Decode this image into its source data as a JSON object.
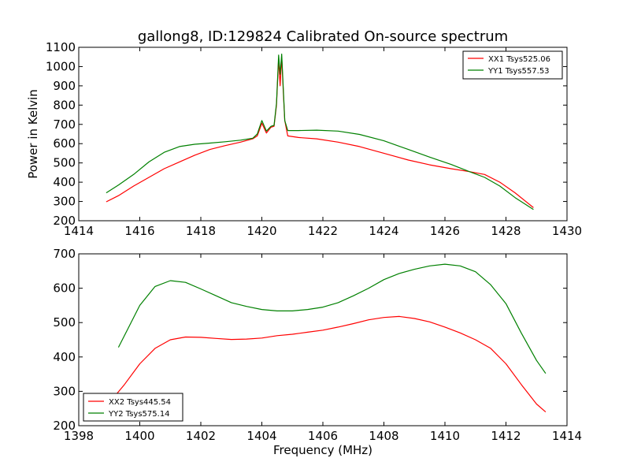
{
  "figure": {
    "title": "gallong8, ID:129824 Calibrated On-source spectrum"
  },
  "chart_data": [
    {
      "type": "line",
      "title": "gallong8, ID:129824 Calibrated On-source spectrum",
      "xlabel": "",
      "ylabel": "Power in Kelvin",
      "xlim": [
        1414,
        1430
      ],
      "ylim": [
        200,
        1100
      ],
      "xticks": [
        1414,
        1416,
        1418,
        1420,
        1422,
        1424,
        1426,
        1428,
        1430
      ],
      "yticks": [
        200,
        300,
        400,
        500,
        600,
        700,
        800,
        900,
        1000,
        1100
      ],
      "legend_position": "top-right",
      "series": [
        {
          "name": "XX1 Tsys525.06",
          "color": "#ff0000",
          "points": [
            [
              1414.9,
              298
            ],
            [
              1415.3,
              330
            ],
            [
              1415.8,
              380
            ],
            [
              1416.3,
              425
            ],
            [
              1416.8,
              470
            ],
            [
              1417.3,
              505
            ],
            [
              1417.8,
              540
            ],
            [
              1418.3,
              570
            ],
            [
              1418.8,
              590
            ],
            [
              1419.3,
              608
            ],
            [
              1419.7,
              625
            ],
            [
              1419.85,
              640
            ],
            [
              1420.0,
              706
            ],
            [
              1420.15,
              655
            ],
            [
              1420.3,
              685
            ],
            [
              1420.4,
              690
            ],
            [
              1420.48,
              800
            ],
            [
              1420.55,
              1040
            ],
            [
              1420.6,
              900
            ],
            [
              1420.65,
              1050
            ],
            [
              1420.7,
              880
            ],
            [
              1420.75,
              720
            ],
            [
              1420.85,
              640
            ],
            [
              1421.2,
              632
            ],
            [
              1421.8,
              625
            ],
            [
              1422.5,
              608
            ],
            [
              1423.2,
              585
            ],
            [
              1424.0,
              550
            ],
            [
              1424.8,
              515
            ],
            [
              1425.5,
              490
            ],
            [
              1426.2,
              470
            ],
            [
              1426.8,
              455
            ],
            [
              1427.3,
              440
            ],
            [
              1427.8,
              400
            ],
            [
              1428.3,
              345
            ],
            [
              1428.9,
              268
            ]
          ]
        },
        {
          "name": "YY1 Tsys557.53",
          "color": "#008000",
          "points": [
            [
              1414.9,
              345
            ],
            [
              1415.3,
              385
            ],
            [
              1415.8,
              440
            ],
            [
              1416.3,
              505
            ],
            [
              1416.8,
              555
            ],
            [
              1417.3,
              585
            ],
            [
              1417.8,
              597
            ],
            [
              1418.3,
              603
            ],
            [
              1418.8,
              610
            ],
            [
              1419.3,
              618
            ],
            [
              1419.7,
              628
            ],
            [
              1419.85,
              650
            ],
            [
              1420.0,
              720
            ],
            [
              1420.15,
              665
            ],
            [
              1420.3,
              690
            ],
            [
              1420.4,
              695
            ],
            [
              1420.48,
              810
            ],
            [
              1420.55,
              1060
            ],
            [
              1420.6,
              960
            ],
            [
              1420.65,
              1065
            ],
            [
              1420.7,
              900
            ],
            [
              1420.75,
              720
            ],
            [
              1420.85,
              668
            ],
            [
              1421.2,
              668
            ],
            [
              1421.8,
              670
            ],
            [
              1422.5,
              665
            ],
            [
              1423.2,
              648
            ],
            [
              1424.0,
              615
            ],
            [
              1424.8,
              570
            ],
            [
              1425.5,
              530
            ],
            [
              1426.2,
              492
            ],
            [
              1426.8,
              455
            ],
            [
              1427.3,
              425
            ],
            [
              1427.8,
              380
            ],
            [
              1428.3,
              320
            ],
            [
              1428.9,
              258
            ]
          ]
        }
      ]
    },
    {
      "type": "line",
      "title": "",
      "xlabel": "Frequency (MHz)",
      "ylabel": "",
      "xlim": [
        1398,
        1414
      ],
      "ylim": [
        200,
        700
      ],
      "xticks": [
        1398,
        1400,
        1402,
        1404,
        1406,
        1408,
        1410,
        1412,
        1414
      ],
      "yticks": [
        200,
        300,
        400,
        500,
        600,
        700
      ],
      "legend_position": "bottom-left",
      "series": [
        {
          "name": "XX2 Tsys445.54",
          "color": "#ff0000",
          "points": [
            [
              1399.2,
              288
            ],
            [
              1399.5,
              320
            ],
            [
              1400.0,
              380
            ],
            [
              1400.5,
              425
            ],
            [
              1401.0,
              450
            ],
            [
              1401.5,
              458
            ],
            [
              1402.0,
              457
            ],
            [
              1402.5,
              454
            ],
            [
              1403.0,
              451
            ],
            [
              1403.5,
              452
            ],
            [
              1404.0,
              455
            ],
            [
              1404.5,
              462
            ],
            [
              1405.0,
              466
            ],
            [
              1405.5,
              472
            ],
            [
              1406.0,
              478
            ],
            [
              1406.5,
              487
            ],
            [
              1407.0,
              497
            ],
            [
              1407.5,
              508
            ],
            [
              1408.0,
              515
            ],
            [
              1408.5,
              518
            ],
            [
              1409.0,
              512
            ],
            [
              1409.5,
              502
            ],
            [
              1410.0,
              487
            ],
            [
              1410.5,
              470
            ],
            [
              1411.0,
              450
            ],
            [
              1411.5,
              425
            ],
            [
              1412.0,
              380
            ],
            [
              1412.5,
              320
            ],
            [
              1413.0,
              263
            ],
            [
              1413.3,
              240
            ]
          ]
        },
        {
          "name": "YY2 Tsys575.14",
          "color": "#008000",
          "points": [
            [
              1399.3,
              428
            ],
            [
              1399.6,
              480
            ],
            [
              1400.0,
              550
            ],
            [
              1400.5,
              605
            ],
            [
              1401.0,
              622
            ],
            [
              1401.5,
              617
            ],
            [
              1402.0,
              598
            ],
            [
              1402.5,
              578
            ],
            [
              1403.0,
              558
            ],
            [
              1403.5,
              547
            ],
            [
              1404.0,
              538
            ],
            [
              1404.5,
              534
            ],
            [
              1405.0,
              534
            ],
            [
              1405.5,
              538
            ],
            [
              1406.0,
              545
            ],
            [
              1406.5,
              558
            ],
            [
              1407.0,
              578
            ],
            [
              1407.5,
              600
            ],
            [
              1408.0,
              625
            ],
            [
              1408.5,
              643
            ],
            [
              1409.0,
              655
            ],
            [
              1409.5,
              665
            ],
            [
              1410.0,
              670
            ],
            [
              1410.5,
              665
            ],
            [
              1411.0,
              648
            ],
            [
              1411.5,
              610
            ],
            [
              1412.0,
              555
            ],
            [
              1412.5,
              470
            ],
            [
              1413.0,
              390
            ],
            [
              1413.3,
              352
            ]
          ]
        }
      ]
    }
  ]
}
